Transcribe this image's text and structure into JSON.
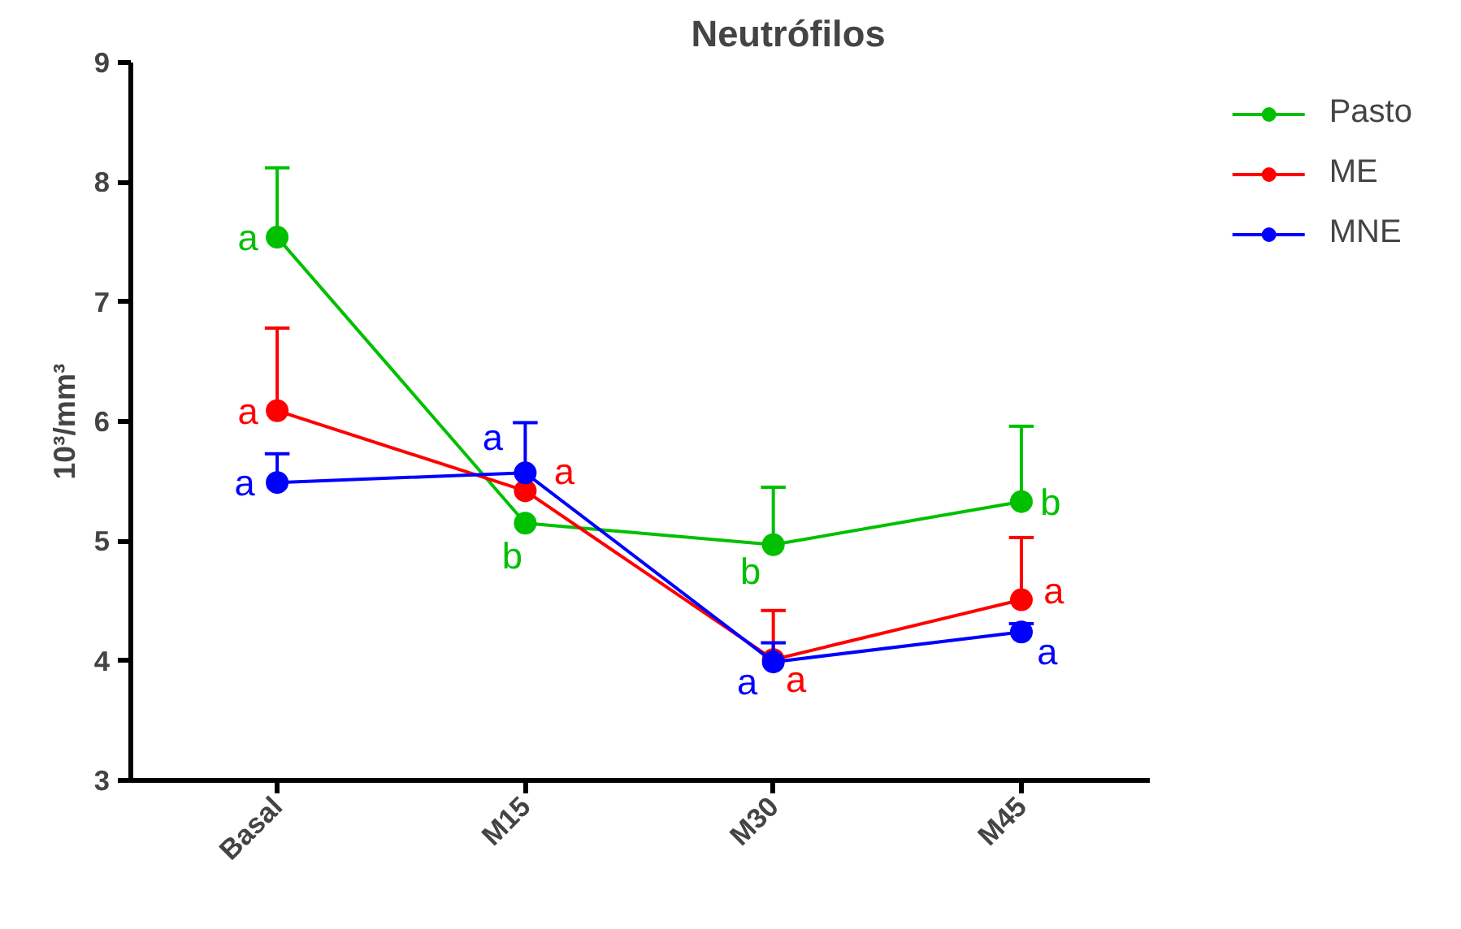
{
  "chart_data": {
    "type": "line",
    "title": "Neutrófilos",
    "ylabel": "10³/mm³",
    "categories": [
      "Basal",
      "M15",
      "M30",
      "M45"
    ],
    "series": [
      {
        "name": "Pasto",
        "color": "#00c000",
        "values": [
          7.54,
          5.15,
          4.97,
          5.33
        ],
        "errors": [
          [
            7.54,
            8.12
          ],
          [
            5.15,
            5.15
          ],
          [
            4.97,
            5.45
          ],
          [
            5.33,
            5.96
          ]
        ],
        "value_labels": [
          "a",
          "b",
          "b",
          "b"
        ]
      },
      {
        "name": "ME",
        "color": "#ff0000",
        "values": [
          6.09,
          5.42,
          4.01,
          4.51
        ],
        "errors": [
          [
            6.09,
            6.78
          ],
          [
            5.42,
            5.42
          ],
          [
            4.01,
            4.42
          ],
          [
            4.51,
            5.03
          ]
        ],
        "value_labels": [
          "a",
          "a",
          "a",
          "a"
        ]
      },
      {
        "name": "MNE",
        "color": "#0000ff",
        "values": [
          5.49,
          5.57,
          3.99,
          4.24
        ],
        "errors": [
          [
            5.49,
            5.73
          ],
          [
            5.57,
            5.99
          ],
          [
            3.99,
            4.15
          ],
          [
            4.24,
            4.31
          ]
        ],
        "value_labels": [
          "a",
          "a",
          "a",
          "a"
        ]
      }
    ],
    "ylim": [
      3,
      9
    ],
    "yticks": [
      3,
      4,
      5,
      6,
      7,
      8,
      9
    ],
    "grid": false,
    "legend": "right",
    "marker": "circle",
    "line_style": "solid"
  }
}
